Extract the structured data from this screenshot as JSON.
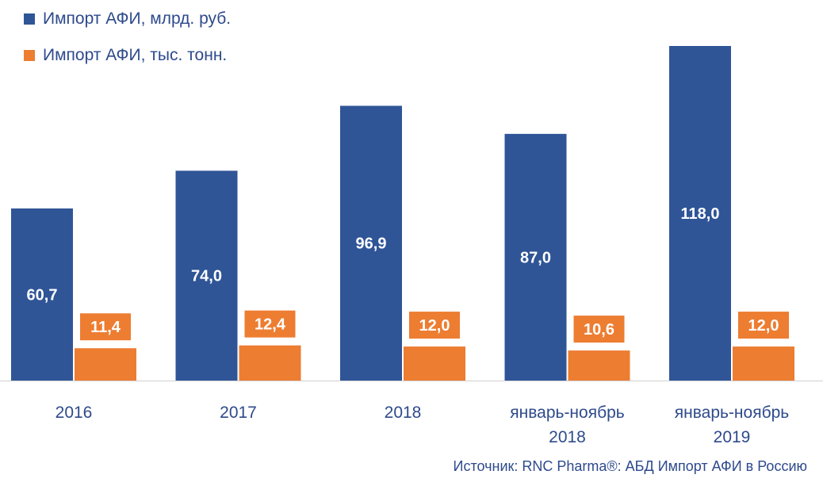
{
  "legend": [
    {
      "label": "Импорт АФИ, млрд. руб.",
      "color": "#2f5597"
    },
    {
      "label": "Импорт АФИ, тыс. тонн.",
      "color": "#ed7d31"
    }
  ],
  "source": "Источник: RNC Pharma®: АБД Импорт АФИ в Россию",
  "chart_data": {
    "type": "bar",
    "categories": [
      [
        "2016"
      ],
      [
        "2017"
      ],
      [
        "2018"
      ],
      [
        "январь-ноябрь",
        "2018"
      ],
      [
        "январь-ноябрь",
        "2019"
      ]
    ],
    "series": [
      {
        "name": "Импорт АФИ, млрд. руб.",
        "color": "#2f5597",
        "values": [
          60.7,
          74.0,
          96.9,
          87.0,
          118.0
        ],
        "labels": [
          "60,7",
          "74,0",
          "96,9",
          "87,0",
          "118,0"
        ]
      },
      {
        "name": "Импорт АФИ, тыс. тонн.",
        "color": "#ed7d31",
        "values": [
          11.4,
          12.4,
          12.0,
          10.6,
          12.0
        ],
        "labels": [
          "11,4",
          "12,4",
          "12,0",
          "10,6",
          "12,0"
        ]
      }
    ]
  }
}
